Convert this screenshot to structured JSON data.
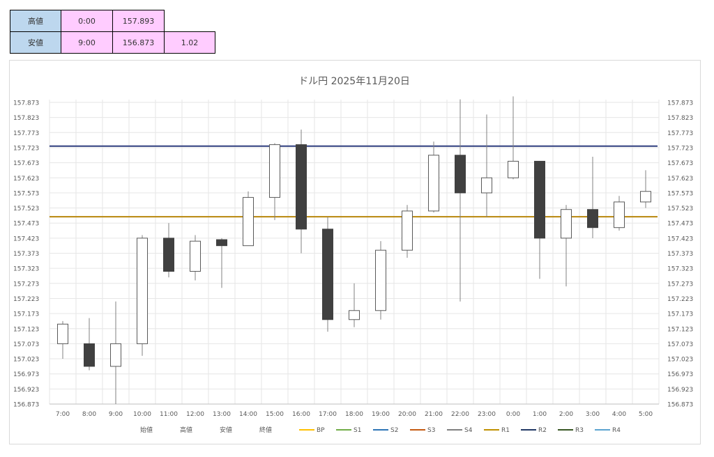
{
  "summary": {
    "high": {
      "label": "高値",
      "time": "0:00",
      "value": "157.893"
    },
    "low": {
      "label": "安値",
      "time": "9:00",
      "value": "156.873",
      "diff": "1.02"
    }
  },
  "chart_data": {
    "type": "candlestick",
    "title": "ドル円 2025年11月20日",
    "categories": [
      "7:00",
      "8:00",
      "9:00",
      "10:00",
      "11:00",
      "12:00",
      "13:00",
      "14:00",
      "15:00",
      "16:00",
      "17:00",
      "18:00",
      "19:00",
      "20:00",
      "21:00",
      "22:00",
      "23:00",
      "0:00",
      "1:00",
      "2:00",
      "3:00",
      "4:00",
      "5:00"
    ],
    "candles": [
      {
        "open": 157.073,
        "high": 157.148,
        "low": 157.023,
        "close": 157.138
      },
      {
        "open": 157.073,
        "high": 157.158,
        "low": 156.985,
        "close": 156.998
      },
      {
        "open": 156.998,
        "high": 157.213,
        "low": 156.873,
        "close": 157.073
      },
      {
        "open": 157.073,
        "high": 157.433,
        "low": 157.033,
        "close": 157.423
      },
      {
        "open": 157.423,
        "high": 157.473,
        "low": 157.293,
        "close": 157.313
      },
      {
        "open": 157.313,
        "high": 157.433,
        "low": 157.283,
        "close": 157.413
      },
      {
        "open": 157.418,
        "high": 157.423,
        "low": 157.258,
        "close": 157.398
      },
      {
        "open": 157.398,
        "high": 157.578,
        "low": 157.398,
        "close": 157.558
      },
      {
        "open": 157.558,
        "high": 157.738,
        "low": 157.483,
        "close": 157.733
      },
      {
        "open": 157.733,
        "high": 157.783,
        "low": 157.373,
        "close": 157.453
      },
      {
        "open": 157.453,
        "high": 157.493,
        "low": 157.113,
        "close": 157.153
      },
      {
        "open": 157.153,
        "high": 157.273,
        "low": 157.128,
        "close": 157.183
      },
      {
        "open": 157.183,
        "high": 157.413,
        "low": 157.153,
        "close": 157.383
      },
      {
        "open": 157.383,
        "high": 157.533,
        "low": 157.358,
        "close": 157.513
      },
      {
        "open": 157.513,
        "high": 157.743,
        "low": 157.508,
        "close": 157.698
      },
      {
        "open": 157.698,
        "high": 157.883,
        "low": 157.213,
        "close": 157.573
      },
      {
        "open": 157.573,
        "high": 157.833,
        "low": 157.493,
        "close": 157.623
      },
      {
        "open": 157.623,
        "high": 157.893,
        "low": 157.618,
        "close": 157.678
      },
      {
        "open": 157.678,
        "high": 157.678,
        "low": 157.288,
        "close": 157.423
      },
      {
        "open": 157.423,
        "high": 157.533,
        "low": 157.263,
        "close": 157.518
      },
      {
        "open": 157.518,
        "high": 157.693,
        "low": 157.423,
        "close": 157.458
      },
      {
        "open": 157.458,
        "high": 157.563,
        "low": 157.448,
        "close": 157.543
      },
      {
        "open": 157.543,
        "high": 157.648,
        "low": 157.523,
        "close": 157.578
      }
    ],
    "horizontal_lines": [
      {
        "name": "R2",
        "value": 157.728,
        "color": "#2f3e7f"
      },
      {
        "name": "R1",
        "value": 157.494,
        "color": "#b8860b"
      }
    ],
    "y_ticks": [
      "157.873",
      "157.823",
      "157.773",
      "157.723",
      "157.673",
      "157.623",
      "157.573",
      "157.523",
      "157.473",
      "157.423",
      "157.373",
      "157.323",
      "157.273",
      "157.223",
      "157.173",
      "157.123",
      "157.073",
      "157.023",
      "156.973",
      "156.923",
      "156.873"
    ],
    "ylim": [
      156.873,
      157.893
    ],
    "grid": true,
    "legend_position": "bottom",
    "legend": [
      {
        "name": "始値",
        "color": "",
        "kind": "none"
      },
      {
        "name": "高値",
        "color": "",
        "kind": "none"
      },
      {
        "name": "安値",
        "color": "",
        "kind": "none"
      },
      {
        "name": "終値",
        "color": "",
        "kind": "none"
      },
      {
        "name": "BP",
        "color": "#ffc000",
        "kind": "line"
      },
      {
        "name": "S1",
        "color": "#70ad47",
        "kind": "line"
      },
      {
        "name": "S2",
        "color": "#2e75b6",
        "kind": "line"
      },
      {
        "name": "S3",
        "color": "#c55a11",
        "kind": "line"
      },
      {
        "name": "S4",
        "color": "#7f7f7f",
        "kind": "line"
      },
      {
        "name": "R1",
        "color": "#bf9000",
        "kind": "line"
      },
      {
        "name": "R2",
        "color": "#203864",
        "kind": "line"
      },
      {
        "name": "R3",
        "color": "#375623",
        "kind": "line"
      },
      {
        "name": "R4",
        "color": "#5ba3d0",
        "kind": "line"
      }
    ],
    "colors": {
      "bearish": "#404040",
      "bullish": "#ffffff",
      "wick": "#808080",
      "grid": "#e6e6e6"
    }
  }
}
